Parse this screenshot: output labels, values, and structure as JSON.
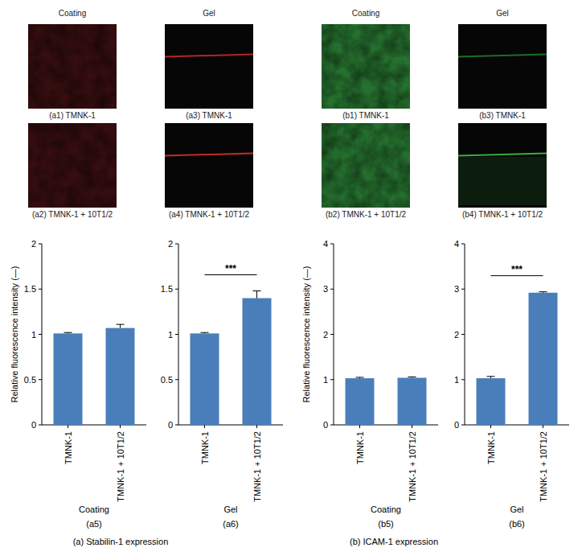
{
  "headers": [
    "Coating",
    "Gel",
    "Coating",
    "Gel"
  ],
  "images": [
    {
      "label": "(a1) TMNK-1",
      "color": "#3b0f12"
    },
    {
      "label": "(a3) TMNK-1",
      "color": "#c8282a"
    },
    {
      "label": "(b1) TMNK-1",
      "color": "#2f8a3a"
    },
    {
      "label": "(b3) TMNK-1",
      "color": "#1e7a2c"
    },
    {
      "label": "(a2) TMNK-1 + 10T1/2",
      "color": "#3b0f12"
    },
    {
      "label": "(a4) TMNK-1 + 10T1/2",
      "color": "#d8302e"
    },
    {
      "label": "(b2) TMNK-1 + 10T1/2",
      "color": "#2f8a3a"
    },
    {
      "label": "(b4) TMNK-1 + 10T1/2",
      "color": "#39c24a"
    }
  ],
  "captions": [
    "(a) Stabilin-1 expression",
    "(b) ICAM-1 expression"
  ],
  "chart_data": [
    {
      "type": "bar",
      "y_label": "Relative fluorescence intensity (—)",
      "x_label": "Coating",
      "panel_label": "(a5)",
      "categories": [
        "TMNK-1",
        "TMNK-1 + 10T1/2"
      ],
      "values": [
        1.01,
        1.07
      ],
      "errors": [
        0.01,
        0.04
      ],
      "color": "#4a7ebb",
      "ylim": [
        0,
        2
      ],
      "yticks": [
        0,
        0.5,
        1,
        1.5,
        2
      ]
    },
    {
      "type": "bar",
      "x_label": "Gel",
      "panel_label": "(a6)",
      "annotations": [
        "***"
      ],
      "categories": [
        "TMNK-1",
        "TMNK-1 + 10T1/2"
      ],
      "values": [
        1.01,
        1.4
      ],
      "errors": [
        0.01,
        0.08
      ],
      "color": "#4a7ebb",
      "ylim": [
        0,
        2
      ],
      "yticks": [
        0,
        0.5,
        1,
        1.5,
        2
      ]
    },
    {
      "type": "bar",
      "y_label": "Relative fluorescence intensity (—)",
      "x_label": "Coating",
      "panel_label": "(b5)",
      "categories": [
        "TMNK-1",
        "TMNK-1 + 10T1/2"
      ],
      "values": [
        1.03,
        1.04
      ],
      "errors": [
        0.02,
        0.02
      ],
      "color": "#4a7ebb",
      "ylim": [
        0,
        4
      ],
      "yticks": [
        0,
        1,
        2,
        3,
        4
      ]
    },
    {
      "type": "bar",
      "x_label": "Gel",
      "panel_label": "(b6)",
      "annotations": [
        "***"
      ],
      "categories": [
        "TMNK-1",
        "TMNK-1 + 10T1/2"
      ],
      "values": [
        1.03,
        2.92
      ],
      "errors": [
        0.04,
        0.02
      ],
      "color": "#4a7ebb",
      "ylim": [
        0,
        4
      ],
      "yticks": [
        0,
        1,
        2,
        3,
        4
      ]
    }
  ]
}
